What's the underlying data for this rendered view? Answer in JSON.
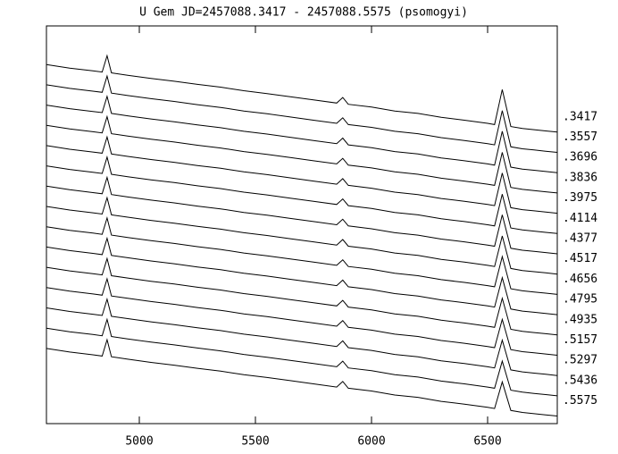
{
  "chart_data": {
    "type": "line",
    "title": "U Gem JD=2457088.3417 - 2457088.5575 (psomogyi)",
    "xlim": [
      4600,
      6800
    ],
    "xticks": [
      5000,
      5500,
      6000,
      6500
    ],
    "ylim": [
      0,
      100
    ],
    "color": "#000000",
    "x": [
      4600,
      4700,
      4800,
      4840,
      4861,
      4880,
      4950,
      5050,
      5150,
      5250,
      5350,
      5450,
      5550,
      5650,
      5750,
      5850,
      5876,
      5900,
      6000,
      6100,
      6200,
      6300,
      6400,
      6500,
      6530,
      6563,
      6600,
      6650,
      6700,
      6750,
      6800
    ],
    "series": [
      {
        "name": ".3417",
        "values": [
          90.3,
          89.4,
          88.7,
          88.4,
          92.5,
          88.2,
          87.6,
          86.8,
          86.1,
          85.3,
          84.6,
          83.7,
          83.0,
          82.2,
          81.4,
          80.6,
          82.0,
          80.3,
          79.6,
          78.6,
          78.0,
          77.0,
          76.3,
          75.5,
          75.2,
          84.0,
          74.7,
          74.2,
          73.9,
          73.6,
          73.3
        ]
      },
      {
        "name": ".3557",
        "values": [
          85.2,
          84.3,
          83.6,
          83.3,
          87.4,
          83.1,
          82.5,
          81.7,
          81.0,
          80.2,
          79.5,
          78.6,
          77.9,
          77.1,
          76.3,
          75.5,
          76.9,
          75.2,
          74.5,
          73.5,
          72.9,
          71.9,
          71.2,
          70.4,
          70.1,
          78.7,
          69.6,
          69.1,
          68.8,
          68.5,
          68.2
        ]
      },
      {
        "name": ".3696",
        "values": [
          80.1,
          79.2,
          78.5,
          78.2,
          82.3,
          78.0,
          77.4,
          76.6,
          75.9,
          75.1,
          74.4,
          73.5,
          72.8,
          72.0,
          71.2,
          70.4,
          71.8,
          70.1,
          69.4,
          68.4,
          67.8,
          66.8,
          66.1,
          65.3,
          65.0,
          73.5,
          64.5,
          64.0,
          63.7,
          63.4,
          63.1
        ]
      },
      {
        "name": ".3836",
        "values": [
          75.0,
          74.1,
          73.4,
          73.1,
          77.2,
          72.9,
          72.3,
          71.5,
          70.8,
          70.0,
          69.3,
          68.4,
          67.7,
          66.9,
          66.1,
          65.3,
          66.7,
          65.0,
          64.3,
          63.3,
          62.7,
          61.7,
          61.0,
          60.2,
          59.9,
          68.2,
          59.4,
          58.9,
          58.6,
          58.3,
          58.0
        ]
      },
      {
        "name": ".3975",
        "values": [
          69.9,
          69.0,
          68.3,
          68.0,
          72.1,
          67.8,
          67.2,
          66.4,
          65.7,
          64.9,
          64.2,
          63.3,
          62.6,
          61.8,
          61.0,
          60.2,
          61.6,
          59.9,
          59.2,
          58.2,
          57.6,
          56.6,
          55.9,
          55.1,
          54.8,
          63.0,
          54.3,
          53.8,
          53.5,
          53.2,
          52.9
        ]
      },
      {
        "name": ".4114",
        "values": [
          64.8,
          63.9,
          63.2,
          62.9,
          67.0,
          62.7,
          62.1,
          61.3,
          60.6,
          59.8,
          59.1,
          58.2,
          57.5,
          56.7,
          55.9,
          55.1,
          56.5,
          54.8,
          54.1,
          53.1,
          52.5,
          51.5,
          50.8,
          50.0,
          49.7,
          57.7,
          49.2,
          48.7,
          48.4,
          48.1,
          47.8
        ]
      },
      {
        "name": ".4377",
        "values": [
          59.7,
          58.8,
          58.1,
          57.8,
          61.9,
          57.6,
          57.0,
          56.2,
          55.5,
          54.7,
          54.0,
          53.1,
          52.4,
          51.6,
          50.8,
          50.0,
          51.4,
          49.7,
          49.0,
          48.0,
          47.4,
          46.4,
          45.7,
          44.9,
          44.6,
          52.5,
          44.1,
          43.6,
          43.3,
          43.0,
          42.7
        ]
      },
      {
        "name": ".4517",
        "values": [
          54.6,
          53.7,
          53.0,
          52.7,
          56.8,
          52.5,
          51.9,
          51.1,
          50.4,
          49.6,
          48.9,
          48.0,
          47.3,
          46.5,
          45.7,
          44.9,
          46.3,
          44.6,
          43.9,
          42.9,
          42.3,
          41.3,
          40.6,
          39.8,
          39.5,
          47.2,
          39.0,
          38.5,
          38.2,
          37.9,
          37.6
        ]
      },
      {
        "name": ".4656",
        "values": [
          49.5,
          48.6,
          47.9,
          47.6,
          51.7,
          47.4,
          46.8,
          46.0,
          45.3,
          44.5,
          43.8,
          42.9,
          42.2,
          41.4,
          40.6,
          39.8,
          41.2,
          39.5,
          38.8,
          37.8,
          37.2,
          36.2,
          35.5,
          34.7,
          34.4,
          42.0,
          33.9,
          33.4,
          33.1,
          32.8,
          32.5
        ]
      },
      {
        "name": ".4795",
        "values": [
          44.4,
          43.5,
          42.8,
          42.5,
          46.6,
          42.3,
          41.7,
          40.9,
          40.2,
          39.4,
          38.7,
          37.8,
          37.1,
          36.3,
          35.5,
          34.7,
          36.1,
          34.4,
          33.7,
          32.7,
          32.1,
          31.1,
          30.4,
          29.6,
          29.3,
          36.7,
          28.8,
          28.3,
          28.0,
          27.7,
          27.4
        ]
      },
      {
        "name": ".4935",
        "values": [
          39.3,
          38.4,
          37.7,
          37.4,
          41.5,
          37.2,
          36.6,
          35.8,
          35.1,
          34.3,
          33.6,
          32.7,
          32.0,
          31.2,
          30.4,
          29.6,
          31.0,
          29.3,
          28.6,
          27.6,
          27.0,
          26.0,
          25.3,
          24.5,
          24.2,
          31.5,
          23.7,
          23.2,
          22.9,
          22.6,
          22.3
        ]
      },
      {
        "name": ".5157",
        "values": [
          34.2,
          33.3,
          32.6,
          32.3,
          36.4,
          32.1,
          31.5,
          30.7,
          30.0,
          29.2,
          28.5,
          27.6,
          26.9,
          26.1,
          25.3,
          24.5,
          25.9,
          24.2,
          23.5,
          22.5,
          21.9,
          20.9,
          20.2,
          19.4,
          19.1,
          26.2,
          18.6,
          18.1,
          17.8,
          17.5,
          17.2
        ]
      },
      {
        "name": ".5297",
        "values": [
          29.1,
          28.2,
          27.5,
          27.2,
          31.3,
          27.0,
          26.4,
          25.6,
          24.9,
          24.1,
          23.4,
          22.5,
          21.8,
          21.0,
          20.2,
          19.4,
          20.8,
          19.1,
          18.4,
          17.4,
          16.8,
          15.8,
          15.1,
          14.3,
          14.0,
          21.0,
          13.5,
          13.0,
          12.7,
          12.4,
          12.1
        ]
      },
      {
        "name": ".5436",
        "values": [
          24.0,
          23.1,
          22.4,
          22.1,
          26.2,
          21.9,
          21.3,
          20.5,
          19.8,
          19.0,
          18.3,
          17.4,
          16.7,
          15.9,
          15.1,
          14.3,
          15.7,
          14.0,
          13.3,
          12.3,
          11.7,
          10.7,
          10.0,
          9.2,
          8.9,
          15.7,
          8.4,
          7.9,
          7.6,
          7.3,
          7.0
        ]
      },
      {
        "name": ".5575",
        "values": [
          18.9,
          18.0,
          17.3,
          17.0,
          21.1,
          16.8,
          16.2,
          15.4,
          14.7,
          13.9,
          13.2,
          12.3,
          11.6,
          10.8,
          10.0,
          9.2,
          10.6,
          8.9,
          8.2,
          7.2,
          6.6,
          5.6,
          4.9,
          4.1,
          3.8,
          10.5,
          3.3,
          2.8,
          2.5,
          2.2,
          1.9
        ]
      }
    ]
  }
}
